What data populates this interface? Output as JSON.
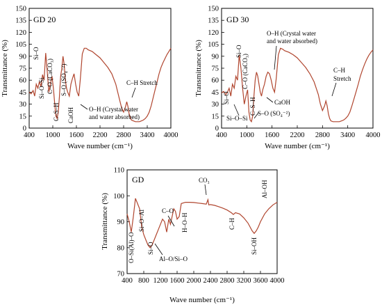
{
  "chart_data": [
    {
      "type": "line",
      "title": "GD 20",
      "xlabel": "Wave number (cm⁻¹)",
      "ylabel": "Transmittance  (%)",
      "xlim": [
        400,
        4000
      ],
      "ylim": [
        0,
        150
      ],
      "xticks": [
        "400",
        "1000",
        "1600",
        "2200",
        "2800",
        "3400",
        "4000"
      ],
      "yticks": [
        "0",
        "15",
        "30",
        "45",
        "60",
        "75",
        "90",
        "105",
        "120",
        "135",
        "150"
      ],
      "color": "#b0452e",
      "series": [
        {
          "x": [
            400,
            450,
            500,
            540,
            580,
            620,
            660,
            700,
            740,
            780,
            820,
            860,
            900,
            940,
            980,
            1020,
            1050,
            1080,
            1110,
            1140,
            1170,
            1200,
            1230,
            1260,
            1290,
            1320,
            1350,
            1380,
            1420,
            1460,
            1500,
            1540,
            1580,
            1620,
            1660,
            1700,
            1750,
            1800,
            1850,
            1900,
            2000,
            2100,
            2200,
            2300,
            2400,
            2500,
            2600,
            2700,
            2750,
            2800,
            2850,
            2880,
            2910,
            2940,
            2970,
            3000,
            3050,
            3100,
            3150,
            3200,
            3250,
            3300,
            3350,
            3400,
            3450,
            3500,
            3550,
            3600,
            3650,
            3700,
            3750,
            3800,
            3850,
            3900,
            3950,
            4000
          ],
          "y": [
            45,
            43,
            47,
            40,
            55,
            50,
            58,
            52,
            67,
            60,
            94,
            70,
            45,
            55,
            65,
            48,
            30,
            15,
            12,
            20,
            40,
            65,
            75,
            90,
            80,
            60,
            50,
            45,
            40,
            55,
            62,
            68,
            55,
            45,
            40,
            62,
            93,
            100,
            100,
            98,
            96,
            92,
            88,
            82,
            76,
            68,
            55,
            35,
            25,
            20,
            27,
            33,
            27,
            18,
            13,
            10,
            9,
            8,
            8,
            8,
            9,
            10,
            12,
            15,
            20,
            28,
            38,
            48,
            58,
            68,
            76,
            82,
            87,
            92,
            96,
            100
          ]
        }
      ],
      "annotations": [
        "Si–O",
        "Si–O–Si",
        "C–O (CaCO₃)",
        "C–S–H",
        "S–O (SO₄⁻²)",
        "CaOH",
        "O–H (Crystal water",
        "and water absorbed)",
        "C–H Stretch"
      ]
    },
    {
      "type": "line",
      "title": "GD 30",
      "xlabel": "Wave number (cm⁻¹)",
      "ylabel": "Transmittance  (%)",
      "xlim": [
        400,
        4000
      ],
      "ylim": [
        0,
        150
      ],
      "xticks": [
        "400",
        "1000",
        "1600",
        "2200",
        "2800",
        "3400",
        "4000"
      ],
      "yticks": [
        "0",
        "15",
        "30",
        "45",
        "60",
        "75",
        "90",
        "105",
        "120",
        "135",
        "150"
      ],
      "color": "#b0452e",
      "series": [
        {
          "x": [
            400,
            450,
            500,
            540,
            580,
            620,
            660,
            700,
            740,
            780,
            820,
            860,
            900,
            940,
            980,
            1020,
            1050,
            1080,
            1110,
            1140,
            1170,
            1200,
            1230,
            1260,
            1290,
            1320,
            1350,
            1380,
            1420,
            1460,
            1500,
            1540,
            1580,
            1620,
            1660,
            1700,
            1750,
            1800,
            1850,
            1900,
            2000,
            2100,
            2200,
            2300,
            2400,
            2500,
            2600,
            2700,
            2750,
            2800,
            2850,
            2880,
            2910,
            2940,
            2970,
            3000,
            3050,
            3100,
            3150,
            3200,
            3250,
            3300,
            3350,
            3400,
            3450,
            3500,
            3550,
            3600,
            3650,
            3700,
            3750,
            3800,
            3850,
            3900,
            3950,
            4000
          ],
          "y": [
            44,
            46,
            42,
            45,
            50,
            40,
            55,
            50,
            65,
            60,
            92,
            75,
            50,
            30,
            40,
            48,
            20,
            10,
            8,
            15,
            40,
            60,
            70,
            65,
            55,
            45,
            40,
            48,
            55,
            65,
            70,
            68,
            60,
            50,
            45,
            62,
            92,
            100,
            99,
            97,
            95,
            92,
            88,
            82,
            76,
            68,
            58,
            42,
            30,
            22,
            28,
            34,
            28,
            18,
            12,
            9,
            8,
            8,
            8,
            8,
            9,
            10,
            12,
            15,
            20,
            28,
            37,
            46,
            55,
            65,
            73,
            80,
            86,
            91,
            95,
            98
          ]
        }
      ],
      "annotations": [
        "Si–O",
        "Si–O",
        "Si–O–Si",
        "C–O (CaCO₃)",
        "C–S–H",
        "O–H (Crystal water",
        "and water absorbed)",
        "CaOH",
        "S–O (SO₄⁻²)",
        "C–H",
        "Stretch"
      ]
    },
    {
      "type": "line",
      "title": "GD",
      "xlabel": "Wave number (cm⁻¹)",
      "ylabel": "Transmittance (%)",
      "xlim": [
        400,
        4000
      ],
      "ylim": [
        70,
        110
      ],
      "xticks": [
        "400",
        "800",
        "1200",
        "1600",
        "2000",
        "2400",
        "2800",
        "3200",
        "3600",
        "4000"
      ],
      "yticks": [
        "70",
        "80",
        "90",
        "100",
        "110"
      ],
      "color": "#b0452e",
      "series": [
        {
          "x": [
            400,
            450,
            500,
            550,
            600,
            650,
            700,
            750,
            800,
            850,
            900,
            950,
            1000,
            1050,
            1100,
            1150,
            1200,
            1250,
            1300,
            1350,
            1400,
            1440,
            1480,
            1520,
            1560,
            1600,
            1650,
            1700,
            1800,
            1900,
            2000,
            2100,
            2200,
            2300,
            2340,
            2360,
            2400,
            2500,
            2600,
            2700,
            2800,
            2900,
            2950,
            3000,
            3100,
            3200,
            3300,
            3400,
            3450,
            3500,
            3550,
            3600,
            3700,
            3800,
            3900,
            4000
          ],
          "y": [
            93,
            90,
            86,
            92,
            99,
            97,
            95,
            88,
            85,
            83,
            81,
            80,
            81,
            83,
            85,
            87,
            89,
            91,
            90,
            86,
            91,
            89,
            92,
            95,
            94,
            91,
            92,
            97,
            97.5,
            97.5,
            97.4,
            97.2,
            97,
            96.8,
            98.5,
            96.5,
            96.6,
            96.3,
            95.8,
            95.2,
            94.5,
            93.5,
            92.8,
            93.5,
            93,
            91.5,
            89.5,
            86.5,
            85.5,
            86.5,
            88,
            90,
            93,
            95,
            96.5,
            97.5
          ]
        }
      ],
      "annotations": [
        "O–Si(Al)–O",
        "Si–O–Al",
        "Si–O",
        "Al–O/Si–O",
        "C–O",
        "H–O–H",
        "CO₃",
        "C–H",
        "Si–OH",
        "Al–OH"
      ]
    }
  ]
}
